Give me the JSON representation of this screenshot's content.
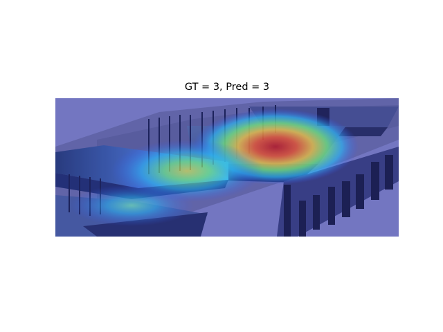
{
  "figure": {
    "title": "GT = 3, Pred = 3",
    "colormap": "jet",
    "background_color": "#ffffff",
    "overlay_base_color": "#7f80c4"
  }
}
